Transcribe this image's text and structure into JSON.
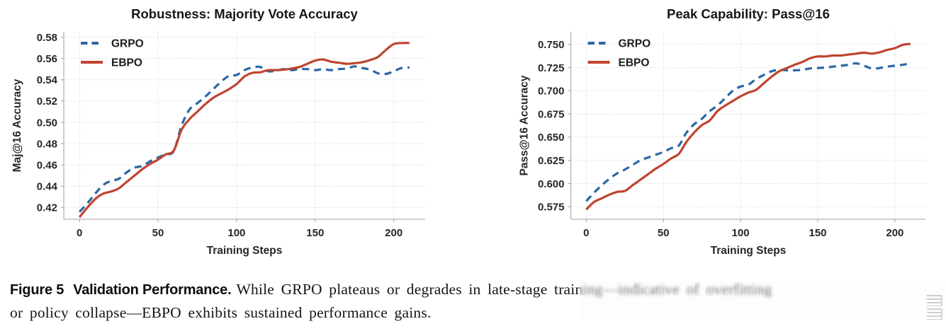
{
  "figure": {
    "caption": {
      "label": "Figure 5",
      "title": "Validation Performance.",
      "body_line1": "While GRPO plateaus or degrades in late-stage training—indicative of overfitting",
      "body_line2": "or policy collapse—EBPO exhibits sustained performance gains."
    }
  },
  "colors": {
    "grpo": "#2b67a5",
    "ebpo": "#c04330",
    "grid": "#cccccc",
    "spine": "#b3b3b3",
    "tick_text": "#262626",
    "title_text": "#161616"
  },
  "chart_data": [
    {
      "type": "line",
      "title": "Robustness: Majority Vote Accuracy",
      "xlabel": "Training Steps",
      "ylabel": "Maj@16 Accuracy",
      "xlim": [
        -10,
        220
      ],
      "ylim": [
        0.409,
        0.585
      ],
      "grid": "dotted",
      "legend_position": "upper-left",
      "xticks": {
        "values": [
          0,
          50,
          100,
          150,
          200
        ],
        "labels": [
          "0",
          "50",
          "100",
          "150",
          "200"
        ]
      },
      "yticks": {
        "values": [
          0.42,
          0.44,
          0.46,
          0.48,
          0.5,
          0.52,
          0.54,
          0.56,
          0.58
        ],
        "labels": [
          "0.42",
          "0.44",
          "0.46",
          "0.48",
          "0.50",
          "0.52",
          "0.54",
          "0.56",
          "0.58"
        ]
      },
      "x": [
        0,
        5,
        10,
        15,
        20,
        25,
        30,
        35,
        40,
        45,
        50,
        55,
        60,
        65,
        70,
        75,
        80,
        85,
        90,
        95,
        100,
        105,
        110,
        115,
        120,
        125,
        130,
        135,
        140,
        145,
        150,
        155,
        160,
        165,
        170,
        175,
        180,
        185,
        190,
        195,
        200,
        205,
        210
      ],
      "series": [
        {
          "name": "GRPO",
          "color": "#2b67a5",
          "dash": true,
          "values": [
            0.416,
            0.424,
            0.433,
            0.441,
            0.445,
            0.447,
            0.453,
            0.4575,
            0.459,
            0.4635,
            0.467,
            0.47,
            0.473,
            0.497,
            0.512,
            0.518,
            0.524,
            0.531,
            0.538,
            0.5435,
            0.5445,
            0.549,
            0.5515,
            0.552,
            0.548,
            0.5485,
            0.55,
            0.549,
            0.55,
            0.55,
            0.549,
            0.55,
            0.549,
            0.55,
            0.5505,
            0.5525,
            0.551,
            0.5495,
            0.546,
            0.5455,
            0.548,
            0.551,
            0.5515
          ]
        },
        {
          "name": "EBPO",
          "color": "#c04330",
          "dash": false,
          "values": [
            0.411,
            0.42,
            0.428,
            0.433,
            0.435,
            0.438,
            0.444,
            0.45,
            0.456,
            0.461,
            0.465,
            0.47,
            0.4735,
            0.493,
            0.503,
            0.51,
            0.517,
            0.523,
            0.527,
            0.531,
            0.536,
            0.543,
            0.5465,
            0.547,
            0.549,
            0.549,
            0.5495,
            0.5505,
            0.552,
            0.555,
            0.558,
            0.559,
            0.557,
            0.556,
            0.555,
            0.5555,
            0.5565,
            0.5585,
            0.5615,
            0.568,
            0.5735,
            0.5745,
            0.5745
          ]
        }
      ]
    },
    {
      "type": "line",
      "title": "Peak Capability: Pass@16",
      "xlabel": "Training Steps",
      "ylabel": "Pass@16 Accuracy",
      "xlim": [
        -10,
        220
      ],
      "ylim": [
        0.5615,
        0.7635
      ],
      "grid": "dotted",
      "legend_position": "upper-left",
      "xticks": {
        "values": [
          0,
          50,
          100,
          150,
          200
        ],
        "labels": [
          "0",
          "50",
          "100",
          "150",
          "200"
        ]
      },
      "yticks": {
        "values": [
          0.575,
          0.6,
          0.625,
          0.65,
          0.675,
          0.7,
          0.725,
          0.75
        ],
        "labels": [
          "0.575",
          "0.600",
          "0.625",
          "0.650",
          "0.675",
          "0.700",
          "0.725",
          "0.750"
        ]
      },
      "x": [
        0,
        5,
        10,
        15,
        20,
        25,
        30,
        35,
        40,
        45,
        50,
        55,
        60,
        65,
        70,
        75,
        80,
        85,
        90,
        95,
        100,
        105,
        110,
        115,
        120,
        125,
        130,
        135,
        140,
        145,
        150,
        155,
        160,
        165,
        170,
        175,
        180,
        185,
        190,
        195,
        200,
        205,
        210
      ],
      "series": [
        {
          "name": "GRPO",
          "color": "#2b67a5",
          "dash": true,
          "values": [
            0.581,
            0.59,
            0.598,
            0.605,
            0.611,
            0.615,
            0.62,
            0.625,
            0.628,
            0.631,
            0.634,
            0.638,
            0.641,
            0.655,
            0.664,
            0.67,
            0.678,
            0.684,
            0.692,
            0.7,
            0.7045,
            0.7065,
            0.7125,
            0.717,
            0.721,
            0.7225,
            0.722,
            0.722,
            0.7225,
            0.724,
            0.7245,
            0.725,
            0.726,
            0.727,
            0.728,
            0.7295,
            0.727,
            0.724,
            0.7245,
            0.726,
            0.727,
            0.728,
            0.7295
          ]
        },
        {
          "name": "EBPO",
          "color": "#c04330",
          "dash": false,
          "values": [
            0.572,
            0.58,
            0.584,
            0.588,
            0.591,
            0.592,
            0.598,
            0.604,
            0.61,
            0.616,
            0.621,
            0.627,
            0.632,
            0.645,
            0.655,
            0.663,
            0.668,
            0.678,
            0.684,
            0.689,
            0.694,
            0.698,
            0.701,
            0.708,
            0.715,
            0.721,
            0.7245,
            0.728,
            0.731,
            0.735,
            0.737,
            0.737,
            0.738,
            0.738,
            0.739,
            0.74,
            0.741,
            0.74,
            0.7415,
            0.744,
            0.746,
            0.7495,
            0.7505
          ]
        }
      ]
    }
  ]
}
